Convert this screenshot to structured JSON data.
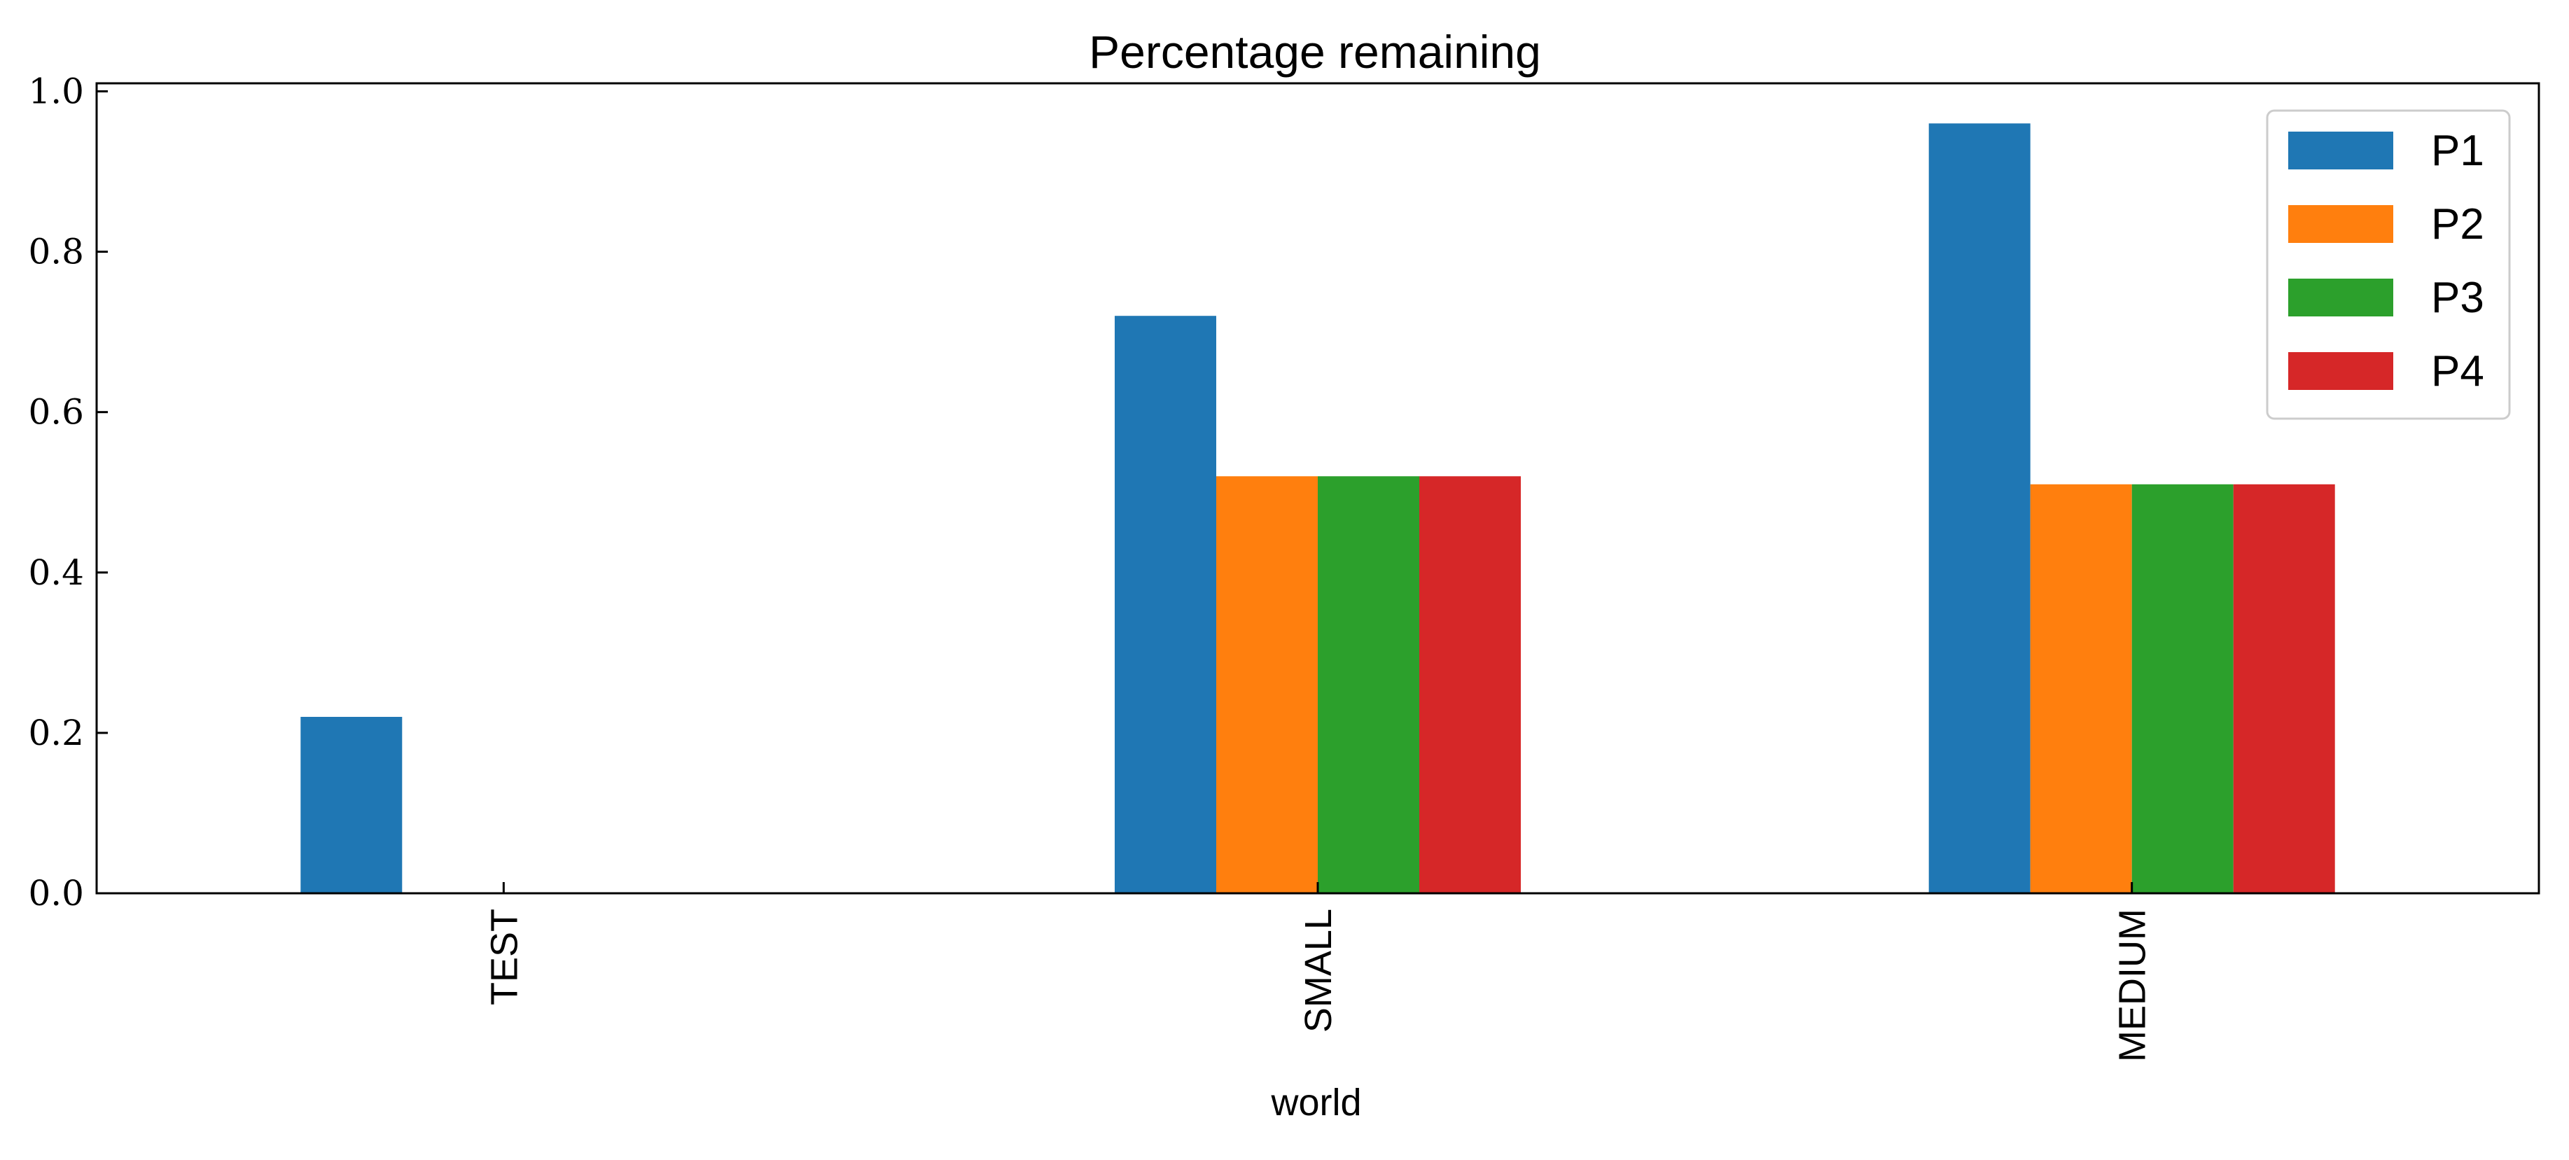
{
  "chart_data": {
    "type": "bar",
    "title": "Percentage remaining",
    "xlabel": "world",
    "ylabel": "",
    "categories": [
      "TEST",
      "SMALL",
      "MEDIUM"
    ],
    "series": [
      {
        "name": "P1",
        "color": "#1f77b4",
        "values": [
          0.22,
          0.72,
          0.96
        ]
      },
      {
        "name": "P2",
        "color": "#ff7f0e",
        "values": [
          0,
          0.52,
          0.51
        ]
      },
      {
        "name": "P3",
        "color": "#2ca02c",
        "values": [
          0,
          0.52,
          0.51
        ]
      },
      {
        "name": "P4",
        "color": "#d62728",
        "values": [
          0,
          0.52,
          0.51
        ]
      }
    ],
    "ylim": [
      0,
      1.01
    ],
    "yticks": [
      "0.0",
      "0.2",
      "0.4",
      "0.6",
      "0.8",
      "1.0"
    ],
    "grid": false,
    "legend_position": "top-right"
  }
}
